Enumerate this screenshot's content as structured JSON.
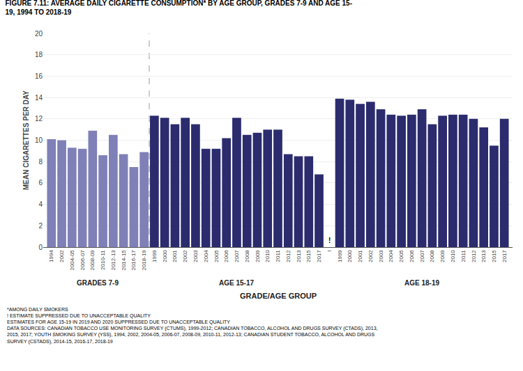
{
  "chart_data": {
    "type": "bar",
    "title": "FIGURE 7.11: AVERAGE DAILY CIGARETTE CONSUMPTION* BY AGE GROUP, GRADES 7-9 AND AGE 15-\n19, 1994 TO 2018-19",
    "xlabel": "GRADE/AGE GROUP",
    "ylabel": "MEAN CIGARETTES PER DAY",
    "categories": [
      "1994",
      "2002",
      "2004-05",
      "2006-07",
      "2008-09",
      "2010-11",
      "2012-13",
      "2014-15",
      "2016-17",
      "2018-19",
      "1999",
      "2000",
      "2001",
      "2002",
      "2003",
      "2004",
      "2005",
      "2006",
      "2007",
      "2008",
      "2009",
      "2010",
      "2011",
      "2012",
      "2013",
      "2015",
      "2017",
      "!",
      "1999",
      "2000",
      "2001",
      "2002",
      "2003",
      "2004",
      "2005",
      "2006",
      "2007",
      "2008",
      "2009",
      "2010",
      "2011",
      "2012",
      "2013",
      "2015",
      "2017"
    ],
    "series": [
      {
        "name": "GRADES 7-9",
        "color": "#8080b8",
        "values": [
          10.1,
          10.0,
          9.3,
          9.2,
          10.9,
          8.6,
          10.5,
          8.7,
          7.5,
          8.9,
          null,
          null,
          null,
          null,
          null,
          null,
          null,
          null,
          null,
          null,
          null,
          null,
          null,
          null,
          null,
          null,
          null,
          null,
          null,
          null,
          null,
          null,
          null,
          null,
          null,
          null,
          null,
          null,
          null,
          null,
          null,
          null,
          null,
          null,
          null
        ]
      },
      {
        "name": "AGE 15-17",
        "color": "#2b2b6e",
        "values": [
          null,
          null,
          null,
          null,
          null,
          null,
          null,
          null,
          null,
          null,
          12.3,
          12.1,
          11.5,
          12.1,
          11.5,
          9.2,
          9.2,
          10.2,
          12.1,
          10.5,
          10.7,
          11.0,
          11.0,
          8.7,
          8.5,
          8.5,
          6.8,
          null,
          null,
          null,
          null,
          null,
          null,
          null,
          null,
          null,
          null,
          null,
          null,
          null,
          null,
          null,
          null,
          null,
          null
        ]
      },
      {
        "name": "AGE 18-19",
        "color": "#2b2b6e",
        "values": [
          null,
          null,
          null,
          null,
          null,
          null,
          null,
          null,
          null,
          null,
          null,
          null,
          null,
          null,
          null,
          null,
          null,
          null,
          null,
          null,
          null,
          null,
          null,
          null,
          null,
          null,
          null,
          null,
          13.9,
          13.8,
          13.4,
          13.6,
          12.9,
          12.4,
          12.3,
          12.4,
          12.9,
          11.5,
          12.3,
          12.4,
          12.4,
          12.0,
          11.2,
          9.5,
          12.0
        ]
      }
    ],
    "annotations": [
      {
        "text": "!",
        "category": "!"
      }
    ],
    "footnote": "*AMONG DAILY SMOKERS\n! ESTIMATE SUPPRESSED DUE TO UNACCEPTABLE QUALITY\nESTIMATES FOR AGE 15-19 IN 2019 AND 2020 SUPPRESSED DUE TO UNACCEPTABLE QUALITY\nDATA SOURCES: CANADIAN TOBACCO USE MONITORING SURVEY (CTUMS), 1999-2012; CANADIAN TOBACCO, ALCOHOL AND DRUGS SURVEY (CTADS), 2013,\n2015, 2017; YOUTH SMOKING SURVEY (YSS), 1994, 2002, 2004-05, 2006-07, 2008-09, 2010-11, 2012-13; CANADIAN STUDENT TOBACCO, ALCOHOL AND DRUGS\nSURVEY (CSTADS), 2014-15, 2016-17, 2018-19",
    "ylim": [
      0,
      20
    ],
    "yticks": [
      0,
      2,
      4,
      6,
      8,
      10,
      12,
      14,
      16,
      18,
      20
    ],
    "grid": true
  }
}
